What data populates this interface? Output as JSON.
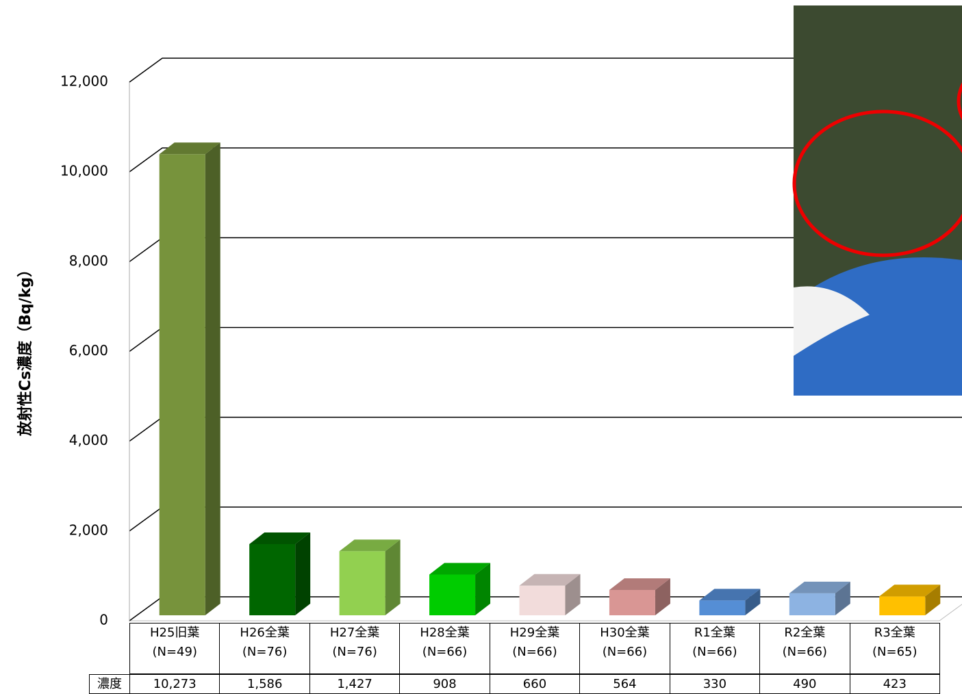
{
  "chart_data": {
    "type": "bar3d",
    "y_axis_label": "放射性Cs濃度（Bq/kg）",
    "categories": [
      "H25旧葉\n(N=49)",
      "H26全葉\n(N=76)",
      "H27全葉\n(N=76)",
      "H28全葉\n(N=66)",
      "H29全葉\n(N=66)",
      "H30全葉\n(N=66)",
      "R1全葉\n(N=66)",
      "R2全葉\n(N=66)",
      "R3全葉\n(N=65)"
    ],
    "table_row_label": "濃度",
    "values": [
      10273,
      1586,
      1427,
      908,
      660,
      564,
      330,
      490,
      423
    ],
    "value_labels": [
      "10,273",
      "1,586",
      "1,427",
      "908",
      "660",
      "564",
      "330",
      "490",
      "423"
    ],
    "colors": [
      "#77933c",
      "#006600",
      "#92d050",
      "#00cc00",
      "#f2dcdb",
      "#d99694",
      "#558ed5",
      "#8db3e2",
      "#ffc000"
    ],
    "ylim": [
      0,
      12000
    ],
    "yticks": [
      0,
      {
        "value": 2000,
        "label": "2,000"
      },
      {
        "value": 4000,
        "label": "4,000"
      },
      {
        "value": 6000,
        "label": "6,000"
      },
      {
        "value": 8000,
        "label": "8,000"
      },
      {
        "value": 10000,
        "label": "10,000"
      },
      {
        "value": 12000,
        "label": "12,000"
      }
    ],
    "grid": true
  }
}
